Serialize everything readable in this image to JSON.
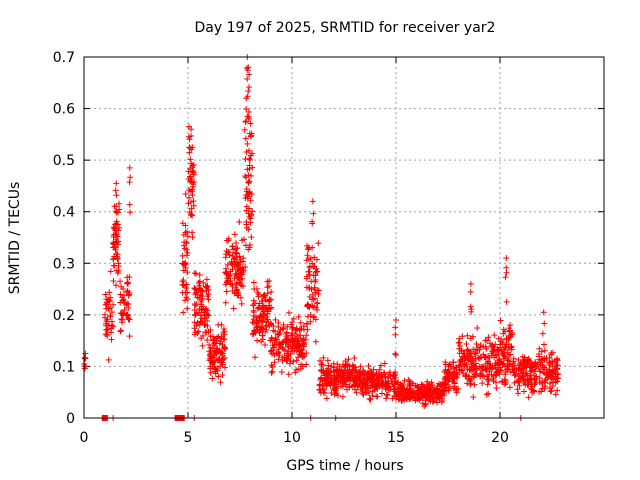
{
  "chart_data": {
    "type": "scatter",
    "title": "Day 197 of 2025, SRMTID for receiver yar2",
    "xlabel": "GPS time / hours",
    "ylabel": "SRMTID / TECUs",
    "xlim": [
      0,
      25
    ],
    "ylim": [
      0,
      0.7
    ],
    "x_ticks": [
      0,
      5,
      10,
      15,
      20
    ],
    "x_tick_labels": [
      "0",
      "5",
      "10",
      "15",
      "20"
    ],
    "y_ticks": [
      0,
      0.1,
      0.2,
      0.3,
      0.4,
      0.5,
      0.6,
      0.7
    ],
    "y_tick_labels": [
      "0",
      "0.1",
      "0.2",
      "0.3",
      "0.4",
      "0.5",
      "0.6",
      "0.7"
    ],
    "grid": true,
    "marker": "plus",
    "marker_color": "#ff0000",
    "baseline_markers": [
      {
        "x": 1.0,
        "y": 0,
        "style": "square"
      },
      {
        "x": 1.4,
        "y": 0,
        "style": "tick"
      },
      {
        "x": 4.5,
        "y": 0,
        "style": "square"
      },
      {
        "x": 4.7,
        "y": 0,
        "style": "square"
      },
      {
        "x": 5.3,
        "y": 0,
        "style": "tick"
      },
      {
        "x": 10.9,
        "y": 0,
        "style": "tick"
      },
      {
        "x": 12.1,
        "y": 0,
        "style": "tick"
      },
      {
        "x": 21.0,
        "y": 0,
        "style": "tick"
      }
    ],
    "series": [
      {
        "name": "SRMTID",
        "segments": [
          {
            "t": 0.0,
            "start": 0.0,
            "end": 0.08,
            "n": 8,
            "base": 0.11,
            "spread": 0.03
          },
          {
            "t": 1.0,
            "start": 1.0,
            "end": 1.4,
            "n": 40,
            "base": 0.2,
            "spread": 0.09
          },
          {
            "t": 1.4,
            "start": 1.4,
            "end": 1.7,
            "n": 50,
            "base": 0.34,
            "spread": 0.12
          },
          {
            "t": 1.7,
            "start": 1.7,
            "end": 2.2,
            "n": 45,
            "base": 0.22,
            "spread": 0.08
          },
          {
            "t": 4.7,
            "start": 4.7,
            "end": 5.0,
            "n": 40,
            "base": 0.3,
            "spread": 0.15
          },
          {
            "t": 5.0,
            "start": 5.0,
            "end": 5.3,
            "n": 40,
            "base": 0.45,
            "spread": 0.12
          },
          {
            "t": 5.3,
            "start": 5.3,
            "end": 6.0,
            "n": 90,
            "base": 0.22,
            "spread": 0.1
          },
          {
            "t": 6.0,
            "start": 6.0,
            "end": 6.8,
            "n": 100,
            "base": 0.13,
            "spread": 0.07
          },
          {
            "t": 6.8,
            "start": 6.8,
            "end": 7.7,
            "n": 110,
            "base": 0.29,
            "spread": 0.1
          },
          {
            "t": 7.7,
            "start": 7.7,
            "end": 8.1,
            "n": 60,
            "base": 0.45,
            "spread": 0.2
          },
          {
            "t": 8.1,
            "start": 8.1,
            "end": 9.0,
            "n": 110,
            "base": 0.2,
            "spread": 0.09
          },
          {
            "t": 9.0,
            "start": 9.0,
            "end": 10.7,
            "n": 170,
            "base": 0.14,
            "spread": 0.07
          },
          {
            "t": 10.7,
            "start": 10.7,
            "end": 11.3,
            "n": 70,
            "base": 0.25,
            "spread": 0.13
          },
          {
            "t": 11.3,
            "start": 11.3,
            "end": 13.0,
            "n": 170,
            "base": 0.08,
            "spread": 0.05
          },
          {
            "t": 13.0,
            "start": 13.0,
            "end": 15.0,
            "n": 200,
            "base": 0.07,
            "spread": 0.04
          },
          {
            "t": 15.0,
            "start": 15.0,
            "end": 17.3,
            "n": 220,
            "base": 0.05,
            "spread": 0.03
          },
          {
            "t": 17.3,
            "start": 17.3,
            "end": 18.0,
            "n": 70,
            "base": 0.08,
            "spread": 0.04
          },
          {
            "t": 18.0,
            "start": 18.0,
            "end": 20.0,
            "n": 200,
            "base": 0.11,
            "spread": 0.07
          },
          {
            "t": 20.0,
            "start": 20.0,
            "end": 20.6,
            "n": 70,
            "base": 0.12,
            "spread": 0.09
          },
          {
            "t": 20.6,
            "start": 20.6,
            "end": 22.8,
            "n": 220,
            "base": 0.09,
            "spread": 0.06
          }
        ],
        "peaks": [
          {
            "x": 1.55,
            "y": 0.455
          },
          {
            "x": 2.2,
            "y": 0.485
          },
          {
            "x": 5.05,
            "y": 0.565
          },
          {
            "x": 5.15,
            "y": 0.56
          },
          {
            "x": 7.85,
            "y": 0.7
          },
          {
            "x": 7.9,
            "y": 0.68
          },
          {
            "x": 7.8,
            "y": 0.62
          },
          {
            "x": 11.0,
            "y": 0.42
          },
          {
            "x": 15.0,
            "y": 0.19
          },
          {
            "x": 18.6,
            "y": 0.26
          },
          {
            "x": 20.3,
            "y": 0.31
          },
          {
            "x": 22.1,
            "y": 0.205
          }
        ]
      }
    ]
  }
}
